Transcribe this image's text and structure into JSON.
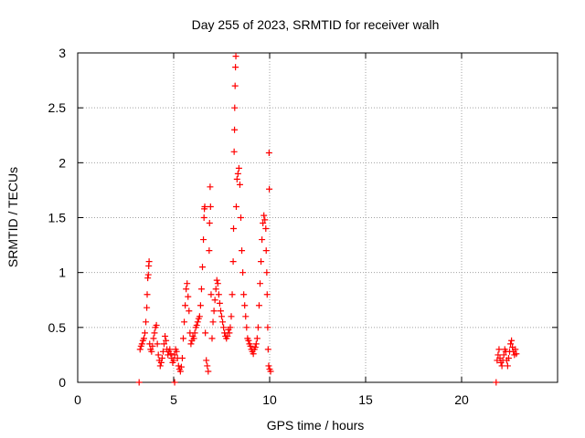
{
  "chart_data": {
    "type": "scatter",
    "title": "Day 255 of 2023, SRMTID for receiver walh",
    "xlabel": "GPS time / hours",
    "ylabel": "SRMTID / TECUs",
    "xlim": [
      0,
      25
    ],
    "ylim": [
      0,
      3
    ],
    "xticks": [
      0,
      5,
      10,
      15,
      20
    ],
    "yticks": [
      0,
      0.5,
      1,
      1.5,
      2,
      2.5,
      3
    ],
    "xtick_labels": [
      "0",
      "5",
      "10",
      "15",
      "20"
    ],
    "ytick_labels": [
      "0",
      "0.5",
      "1",
      "1.5",
      "2",
      "2.5",
      "3"
    ],
    "grid": true,
    "series": [
      {
        "name": "SRMTID",
        "marker": "plus",
        "color": "#ff0000",
        "points": [
          [
            3.2,
            0.0
          ],
          [
            5.05,
            0.0
          ],
          [
            21.8,
            0.0
          ],
          [
            3.25,
            0.3
          ],
          [
            3.3,
            0.33
          ],
          [
            3.35,
            0.35
          ],
          [
            3.4,
            0.38
          ],
          [
            3.45,
            0.4
          ],
          [
            3.5,
            0.45
          ],
          [
            3.55,
            0.55
          ],
          [
            3.6,
            0.68
          ],
          [
            3.62,
            0.8
          ],
          [
            3.65,
            0.95
          ],
          [
            3.68,
            0.98
          ],
          [
            3.7,
            1.06
          ],
          [
            3.72,
            1.1
          ],
          [
            3.75,
            0.35
          ],
          [
            3.8,
            0.3
          ],
          [
            3.85,
            0.28
          ],
          [
            3.9,
            0.33
          ],
          [
            3.95,
            0.4
          ],
          [
            4.0,
            0.45
          ],
          [
            4.05,
            0.5
          ],
          [
            4.1,
            0.52
          ],
          [
            4.15,
            0.35
          ],
          [
            4.2,
            0.25
          ],
          [
            4.25,
            0.2
          ],
          [
            4.3,
            0.15
          ],
          [
            4.35,
            0.18
          ],
          [
            4.4,
            0.22
          ],
          [
            4.45,
            0.28
          ],
          [
            4.5,
            0.35
          ],
          [
            4.55,
            0.42
          ],
          [
            4.6,
            0.38
          ],
          [
            4.65,
            0.3
          ],
          [
            4.7,
            0.25
          ],
          [
            4.75,
            0.28
          ],
          [
            4.8,
            0.3
          ],
          [
            4.85,
            0.26
          ],
          [
            4.9,
            0.22
          ],
          [
            4.95,
            0.18
          ],
          [
            5.0,
            0.2
          ],
          [
            5.05,
            0.25
          ],
          [
            5.1,
            0.3
          ],
          [
            5.15,
            0.28
          ],
          [
            5.2,
            0.22
          ],
          [
            5.25,
            0.15
          ],
          [
            5.3,
            0.12
          ],
          [
            5.35,
            0.1
          ],
          [
            5.4,
            0.14
          ],
          [
            5.45,
            0.22
          ],
          [
            5.5,
            0.4
          ],
          [
            5.55,
            0.55
          ],
          [
            5.6,
            0.7
          ],
          [
            5.65,
            0.85
          ],
          [
            5.7,
            0.9
          ],
          [
            5.75,
            0.78
          ],
          [
            5.8,
            0.65
          ],
          [
            5.85,
            0.45
          ],
          [
            5.9,
            0.35
          ],
          [
            5.95,
            0.38
          ],
          [
            6.0,
            0.42
          ],
          [
            6.05,
            0.4
          ],
          [
            6.1,
            0.45
          ],
          [
            6.15,
            0.5
          ],
          [
            6.2,
            0.52
          ],
          [
            6.25,
            0.55
          ],
          [
            6.3,
            0.58
          ],
          [
            6.35,
            0.6
          ],
          [
            6.4,
            0.7
          ],
          [
            6.45,
            0.85
          ],
          [
            6.5,
            1.05
          ],
          [
            6.55,
            1.3
          ],
          [
            6.58,
            1.5
          ],
          [
            6.6,
            1.58
          ],
          [
            6.62,
            1.6
          ],
          [
            6.65,
            0.45
          ],
          [
            6.7,
            0.2
          ],
          [
            6.75,
            0.15
          ],
          [
            6.8,
            0.1
          ],
          [
            6.85,
            1.2
          ],
          [
            6.87,
            1.45
          ],
          [
            6.9,
            1.78
          ],
          [
            6.92,
            1.6
          ],
          [
            6.95,
            0.8
          ],
          [
            7.0,
            0.4
          ],
          [
            7.05,
            0.55
          ],
          [
            7.1,
            0.65
          ],
          [
            7.15,
            0.75
          ],
          [
            7.2,
            0.85
          ],
          [
            7.25,
            0.93
          ],
          [
            7.3,
            0.9
          ],
          [
            7.35,
            0.8
          ],
          [
            7.4,
            0.72
          ],
          [
            7.45,
            0.65
          ],
          [
            7.5,
            0.6
          ],
          [
            7.55,
            0.55
          ],
          [
            7.6,
            0.5
          ],
          [
            7.65,
            0.45
          ],
          [
            7.7,
            0.42
          ],
          [
            7.75,
            0.4
          ],
          [
            7.8,
            0.42
          ],
          [
            7.85,
            0.48
          ],
          [
            7.9,
            0.45
          ],
          [
            7.95,
            0.5
          ],
          [
            8.0,
            0.6
          ],
          [
            8.05,
            0.8
          ],
          [
            8.1,
            1.1
          ],
          [
            8.12,
            1.4
          ],
          [
            8.15,
            2.1
          ],
          [
            8.17,
            2.3
          ],
          [
            8.18,
            2.5
          ],
          [
            8.2,
            2.7
          ],
          [
            8.22,
            2.87
          ],
          [
            8.24,
            2.97
          ],
          [
            8.26,
            1.6
          ],
          [
            8.3,
            1.85
          ],
          [
            8.35,
            1.9
          ],
          [
            8.4,
            1.95
          ],
          [
            8.45,
            1.8
          ],
          [
            8.5,
            1.5
          ],
          [
            8.55,
            1.2
          ],
          [
            8.6,
            1.0
          ],
          [
            8.65,
            0.8
          ],
          [
            8.7,
            0.7
          ],
          [
            8.75,
            0.6
          ],
          [
            8.8,
            0.5
          ],
          [
            8.85,
            0.4
          ],
          [
            8.9,
            0.38
          ],
          [
            8.95,
            0.35
          ],
          [
            9.0,
            0.33
          ],
          [
            9.05,
            0.3
          ],
          [
            9.1,
            0.28
          ],
          [
            9.15,
            0.26
          ],
          [
            9.2,
            0.3
          ],
          [
            9.25,
            0.32
          ],
          [
            9.3,
            0.35
          ],
          [
            9.35,
            0.4
          ],
          [
            9.4,
            0.5
          ],
          [
            9.45,
            0.7
          ],
          [
            9.5,
            0.9
          ],
          [
            9.55,
            1.1
          ],
          [
            9.6,
            1.3
          ],
          [
            9.65,
            1.45
          ],
          [
            9.7,
            1.52
          ],
          [
            9.75,
            1.48
          ],
          [
            9.8,
            1.4
          ],
          [
            9.82,
            1.2
          ],
          [
            9.85,
            1.0
          ],
          [
            9.87,
            0.8
          ],
          [
            9.9,
            0.5
          ],
          [
            9.92,
            0.3
          ],
          [
            9.95,
            0.15
          ],
          [
            9.97,
            2.09
          ],
          [
            9.98,
            1.76
          ],
          [
            10.0,
            0.12
          ],
          [
            10.05,
            0.1
          ],
          [
            21.85,
            0.2
          ],
          [
            21.9,
            0.25
          ],
          [
            21.95,
            0.3
          ],
          [
            22.0,
            0.22
          ],
          [
            22.05,
            0.18
          ],
          [
            22.1,
            0.15
          ],
          [
            22.15,
            0.2
          ],
          [
            22.2,
            0.25
          ],
          [
            22.25,
            0.3
          ],
          [
            22.3,
            0.28
          ],
          [
            22.35,
            0.2
          ],
          [
            22.4,
            0.15
          ],
          [
            22.45,
            0.22
          ],
          [
            22.5,
            0.28
          ],
          [
            22.55,
            0.35
          ],
          [
            22.6,
            0.38
          ],
          [
            22.65,
            0.32
          ],
          [
            22.7,
            0.28
          ],
          [
            22.75,
            0.25
          ],
          [
            22.8,
            0.3
          ],
          [
            22.85,
            0.26
          ]
        ]
      }
    ]
  }
}
